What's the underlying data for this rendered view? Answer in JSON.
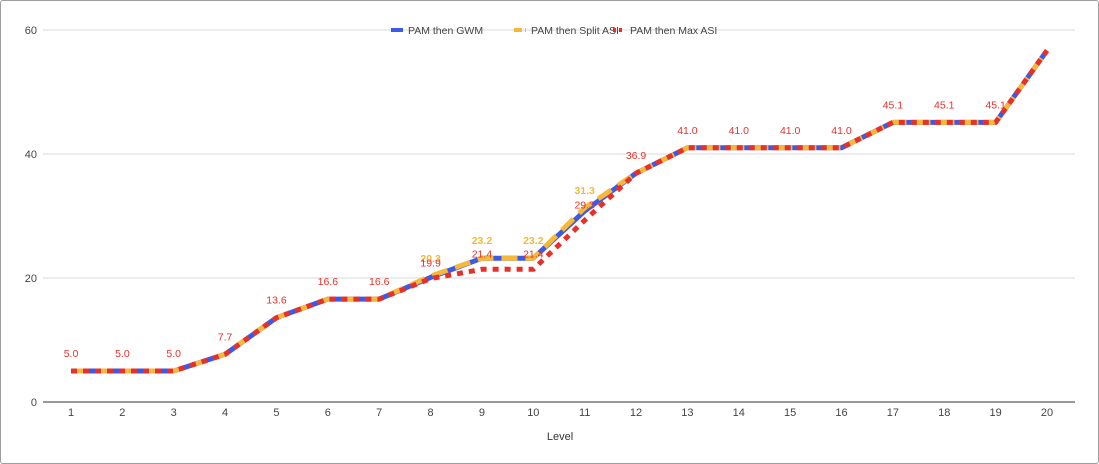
{
  "chart_data": {
    "type": "line",
    "title": "",
    "xlabel": "Level",
    "ylabel": "",
    "x": [
      1,
      2,
      3,
      4,
      5,
      6,
      7,
      8,
      9,
      10,
      11,
      12,
      13,
      14,
      15,
      16,
      17,
      18,
      19,
      20
    ],
    "ylim": [
      0,
      60
    ],
    "yticks": [
      0,
      20,
      40,
      60
    ],
    "grid": true,
    "legend_position": "top-center",
    "series": [
      {
        "name": "PAM then GWM",
        "color": "#3d5ae6",
        "style": "solid",
        "values": [
          5.0,
          5.0,
          5.0,
          7.7,
          13.6,
          16.6,
          16.6,
          20.1,
          23.2,
          23.2,
          30.8,
          36.9,
          41.0,
          41.0,
          41.0,
          41.0,
          45.1,
          45.1,
          45.1,
          56.7
        ]
      },
      {
        "name": "PAM then Split ASI",
        "color": "#f4b83c",
        "style": "dashed",
        "values": [
          5.0,
          5.0,
          5.0,
          7.7,
          13.6,
          16.6,
          16.6,
          20.3,
          23.2,
          23.2,
          31.3,
          36.9,
          41.0,
          41.0,
          41.0,
          41.0,
          45.1,
          45.1,
          45.1,
          56.7
        ],
        "labels": [
          null,
          null,
          null,
          null,
          null,
          null,
          null,
          "20.3",
          "23.2",
          "23.2",
          "31.3",
          null,
          null,
          null,
          null,
          null,
          null,
          null,
          null,
          null
        ]
      },
      {
        "name": "PAM then Max ASI",
        "color": "#e8302b",
        "style": "dotted",
        "values": [
          5.0,
          5.0,
          5.0,
          7.7,
          13.6,
          16.6,
          16.6,
          19.9,
          21.4,
          21.4,
          29.3,
          36.9,
          41.0,
          41.0,
          41.0,
          41.0,
          45.1,
          45.1,
          45.1,
          56.7
        ],
        "labels": [
          "5.0",
          "5.0",
          "5.0",
          "7.7",
          "13.6",
          "16.6",
          "16.6",
          "19.9",
          "21.4",
          "21.4",
          "29.3",
          "36.9",
          "41.0",
          "41.0",
          "41.0",
          "41.0",
          "45.1",
          "45.1",
          "45.1",
          null
        ]
      }
    ]
  }
}
